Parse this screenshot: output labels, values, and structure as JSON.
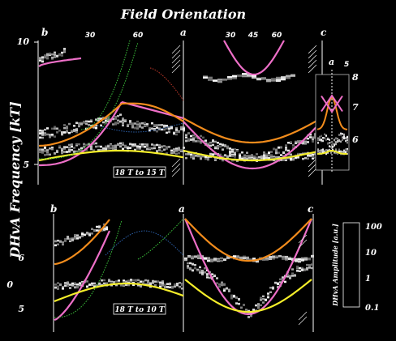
{
  "chart_data": {
    "type": "scatter",
    "title": "Field Orientation",
    "ylabel": "DHvA Frequency [kT]",
    "colorbar": {
      "label": "DHvA Amplitude [a.u.]",
      "ticks": [
        "100",
        "10",
        "1",
        "0.1"
      ],
      "shades": [
        "#ffffff",
        "#e6e6e6",
        "#c8c8c8",
        "#a8a8a8",
        "#888888",
        "#686868",
        "#484848",
        "#282828"
      ]
    },
    "colors": {
      "pink": "#ee6fc8",
      "orange": "#f28c1c",
      "yellow": "#f5ee2a",
      "green": "#3cc43c",
      "red": "#c0392b",
      "blue": "#2b5fa8"
    },
    "panels": [
      {
        "range_label": "18 T to 15 T",
        "direction_labels": [
          "b",
          "a",
          "c"
        ],
        "angle_ticks_left": [
          "30",
          "60"
        ],
        "angle_ticks_right": [
          "30",
          "45",
          "60"
        ],
        "y_ticks": [
          "10",
          "5"
        ],
        "ylim": [
          4,
          10
        ],
        "inset": {
          "label": "a",
          "tick": "5",
          "y_ticks": [
            "8",
            "7",
            "6"
          ]
        }
      },
      {
        "range_label": "18 T to 10 T",
        "direction_labels": [
          "b",
          "a",
          "c"
        ],
        "y_ticks": [
          "6",
          "0",
          "5"
        ]
      }
    ]
  }
}
